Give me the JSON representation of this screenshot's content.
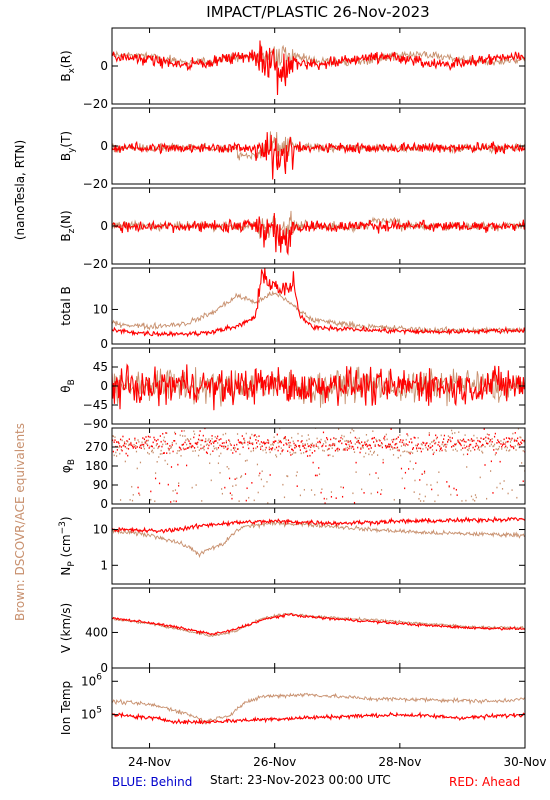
{
  "title": "IMPACT/PLASTIC   26-Nov-2023",
  "side_label_units": "(nanoTesla, RTN)",
  "side_label_equivalents": "Brown: DSCOVR/ACE equivalents",
  "footer": {
    "behind": "BLUE: Behind",
    "start": "Start: 23-Nov-2023 00:00 UTC",
    "ahead": "RED: Ahead"
  },
  "colors": {
    "ahead": "#ff0000",
    "dscovr": "#c8906e",
    "behind": "#0000cc",
    "axis": "#000000",
    "equivalents_label": "#c8906e"
  },
  "chart_data": {
    "type": "line",
    "x_axis": {
      "label": "",
      "range_days": [
        0.4,
        7.0
      ],
      "tick_labels": [
        "24-Nov",
        "26-Nov",
        "28-Nov",
        "30-Nov"
      ],
      "tick_days": [
        1,
        3,
        5,
        7
      ]
    },
    "panels": [
      {
        "id": "bx",
        "label": "Bx(R)",
        "base": "B",
        "sub": "x",
        "suffix": "(R)",
        "scale": "linear",
        "ylim": [
          -20,
          20
        ],
        "ticks": [
          -20,
          0
        ],
        "tick_labels": [
          "−20",
          "0"
        ],
        "series": [
          {
            "name": "Ahead",
            "kind": "bx_ahead",
            "values_summary": "fluctuating about 0, ~±5 nT; strong ±15 nT structure near 25.5–26 Nov"
          },
          {
            "name": "DSCOVR/ACE",
            "kind": "bx_dscovr",
            "values_summary": "similar, offset slightly positive"
          }
        ]
      },
      {
        "id": "by",
        "label": "By(T)",
        "base": "B",
        "sub": "y",
        "suffix": "(T)",
        "scale": "linear",
        "ylim": [
          -20,
          20
        ],
        "ticks": [
          -20,
          0
        ],
        "tick_labels": [
          "−20",
          "0"
        ],
        "series": [
          {
            "name": "Ahead",
            "kind": "by_ahead",
            "values_summary": "around 0, large ±15 nT excursions near 25.5–26 Nov"
          },
          {
            "name": "DSCOVR/ACE",
            "kind": "by_dscovr",
            "values_summary": "similar"
          }
        ]
      },
      {
        "id": "bz",
        "label": "Bz(N)",
        "base": "B",
        "sub": "z",
        "suffix": "(N)",
        "scale": "linear",
        "ylim": [
          -20,
          20
        ],
        "ticks": [
          -20,
          0
        ],
        "tick_labels": [
          "−20",
          "0"
        ],
        "series": [
          {
            "name": "Ahead",
            "kind": "bz_ahead",
            "values_summary": "around 0, dips to −18 nT near 25.7 Nov"
          },
          {
            "name": "DSCOVR/ACE",
            "kind": "bz_dscovr",
            "values_summary": "similar"
          }
        ]
      },
      {
        "id": "bt",
        "label": "total B",
        "scale": "linear",
        "ylim": [
          0,
          22
        ],
        "ticks": [
          0,
          10
        ],
        "tick_labels": [
          "0",
          "10"
        ],
        "series": [
          {
            "name": "Ahead",
            "kind": "bt_ahead",
            "points": [
              [
                0.4,
                4
              ],
              [
                1.0,
                3
              ],
              [
                1.8,
                3
              ],
              [
                2.4,
                5
              ],
              [
                2.7,
                8
              ],
              [
                2.8,
                20
              ],
              [
                3.0,
                17
              ],
              [
                3.2,
                15
              ],
              [
                3.3,
                18
              ],
              [
                3.4,
                8
              ],
              [
                3.6,
                5
              ],
              [
                4.5,
                4
              ],
              [
                5.5,
                3.5
              ],
              [
                7.0,
                4
              ]
            ]
          },
          {
            "name": "DSCOVR/ACE",
            "kind": "bt_dscovr",
            "points": [
              [
                0.4,
                6
              ],
              [
                1.0,
                5
              ],
              [
                1.6,
                6
              ],
              [
                2.0,
                9
              ],
              [
                2.4,
                14
              ],
              [
                2.7,
                12
              ],
              [
                3.0,
                15
              ],
              [
                3.3,
                11
              ],
              [
                3.6,
                7
              ],
              [
                4.5,
                5
              ],
              [
                5.5,
                4
              ],
              [
                7.0,
                4
              ]
            ]
          }
        ]
      },
      {
        "id": "theta",
        "label": "θB",
        "base": "θ",
        "sub": "B",
        "suffix": "",
        "scale": "linear",
        "ylim": [
          -90,
          90
        ],
        "ticks": [
          -90,
          -45,
          0,
          45
        ],
        "tick_labels": [
          "−90",
          "−45",
          "0",
          "45"
        ],
        "series": [
          {
            "name": "Ahead",
            "kind": "theta_ahead",
            "values_summary": "scattered between −90 and +90 deg"
          },
          {
            "name": "DSCOVR/ACE",
            "kind": "theta_dscovr",
            "values_summary": "scattered between −90 and +90 deg"
          }
        ]
      },
      {
        "id": "phi",
        "label": "φB",
        "base": "φ",
        "sub": "B",
        "suffix": "",
        "scale": "linear",
        "ylim": [
          0,
          360
        ],
        "ticks": [
          0,
          90,
          180,
          270
        ],
        "tick_labels": [
          "0",
          "90",
          "180",
          "270"
        ],
        "series": [
          {
            "name": "Ahead",
            "kind": "phi_ahead",
            "values_summary": "mostly 270–360 deg with scattered points"
          },
          {
            "name": "DSCOVR/ACE",
            "kind": "phi_dscovr",
            "values_summary": "scattered, many near 270–360 deg"
          }
        ]
      },
      {
        "id": "np",
        "label": "Np (cm-3)",
        "base": "N",
        "sub": "P",
        "suffix": " (cm",
        "scale": "log",
        "ylim": [
          0.3,
          40
        ],
        "ticks": [
          1,
          10
        ],
        "tick_labels": [
          "1",
          "10"
        ],
        "series": [
          {
            "name": "Ahead",
            "kind": "np_ahead",
            "points": [
              [
                0.4,
                10
              ],
              [
                1.2,
                9
              ],
              [
                1.6,
                11
              ],
              [
                2.0,
                14
              ],
              [
                2.5,
                16
              ],
              [
                3.0,
                17
              ],
              [
                4.0,
                15
              ],
              [
                5.0,
                17
              ],
              [
                6.0,
                18
              ],
              [
                7.0,
                20
              ]
            ]
          },
          {
            "name": "DSCOVR/ACE",
            "kind": "np_dscovr",
            "points": [
              [
                0.4,
                9
              ],
              [
                1.0,
                7
              ],
              [
                1.5,
                4
              ],
              [
                1.8,
                2
              ],
              [
                2.2,
                4
              ],
              [
                2.5,
                12
              ],
              [
                3.0,
                15
              ],
              [
                3.5,
                14
              ],
              [
                4.5,
                10
              ],
              [
                5.5,
                8
              ],
              [
                7.0,
                7
              ]
            ]
          }
        ]
      },
      {
        "id": "v",
        "label": "V (km/s)",
        "scale": "linear",
        "ylim": [
          0,
          900
        ],
        "ticks": [
          0,
          400
        ],
        "tick_labels": [
          "0",
          "400"
        ],
        "series": [
          {
            "name": "Ahead",
            "kind": "v_ahead",
            "points": [
              [
                0.4,
                560
              ],
              [
                1.0,
                510
              ],
              [
                1.5,
                450
              ],
              [
                2.0,
                380
              ],
              [
                2.3,
                420
              ],
              [
                2.8,
                540
              ],
              [
                3.2,
                600
              ],
              [
                3.8,
                560
              ],
              [
                4.6,
                520
              ],
              [
                5.4,
                480
              ],
              [
                6.2,
                450
              ],
              [
                7.0,
                440
              ]
            ]
          },
          {
            "name": "DSCOVR/ACE",
            "kind": "v_dscovr",
            "points": [
              [
                0.4,
                550
              ],
              [
                1.0,
                500
              ],
              [
                1.5,
                430
              ],
              [
                2.0,
                360
              ],
              [
                2.4,
                420
              ],
              [
                2.8,
                560
              ],
              [
                3.2,
                610
              ],
              [
                3.8,
                570
              ],
              [
                4.6,
                540
              ],
              [
                5.4,
                500
              ],
              [
                6.2,
                460
              ],
              [
                7.0,
                450
              ]
            ]
          }
        ]
      },
      {
        "id": "temp",
        "label": "Ion Temp",
        "scale": "log",
        "ylim": [
          10000,
          2500000
        ],
        "ticks": [
          100000,
          1000000
        ],
        "tick_labels": [
          "10",
          "10"
        ],
        "tick_exponents": [
          "5",
          "6"
        ],
        "series": [
          {
            "name": "Ahead",
            "kind": "temp_ahead",
            "points": [
              [
                0.4,
                100000
              ],
              [
                1.0,
                80000
              ],
              [
                1.5,
                60000
              ],
              [
                1.9,
                60000
              ],
              [
                5.0,
                100000
              ],
              [
                6.0,
                80000
              ],
              [
                7.0,
                100000
              ]
            ]
          },
          {
            "name": "DSCOVR/ACE",
            "kind": "temp_dscovr",
            "points": [
              [
                0.4,
                250000
              ],
              [
                1.0,
                200000
              ],
              [
                1.5,
                120000
              ],
              [
                1.9,
                60000
              ],
              [
                2.3,
                100000
              ],
              [
                2.8,
                350000
              ],
              [
                3.5,
                400000
              ],
              [
                4.5,
                300000
              ],
              [
                5.5,
                280000
              ],
              [
                6.5,
                250000
              ],
              [
                7.0,
                300000
              ]
            ]
          }
        ]
      }
    ]
  }
}
